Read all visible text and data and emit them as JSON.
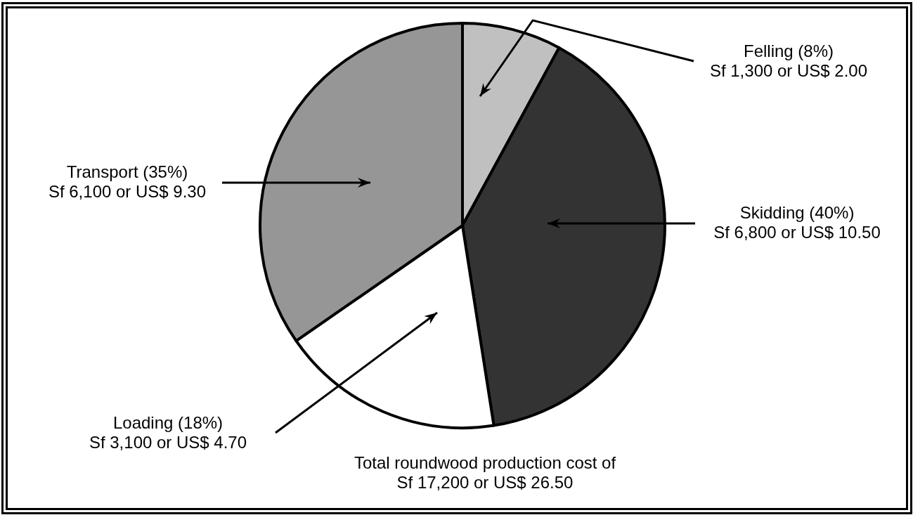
{
  "chart_data": {
    "type": "pie",
    "categories": [
      "Felling",
      "Skidding",
      "Loading",
      "Transport"
    ],
    "values": [
      8,
      40,
      18,
      35
    ],
    "colors": [
      "#c0c0c0",
      "#333333",
      "#ffffff",
      "#969696"
    ],
    "value_labels": [
      "(8%)\nSf 1,300 or US$ 2.00",
      "(40%)\nSf 6,800 or US$ 10.50",
      "(18%)\nSf 3,100 or US$ 4.70",
      "(35%)\nSf 6,100 or US$ 9.30"
    ],
    "annotations": [
      "Total roundwood production cost of Sf 17,200 or US$ 26.50"
    ]
  }
}
